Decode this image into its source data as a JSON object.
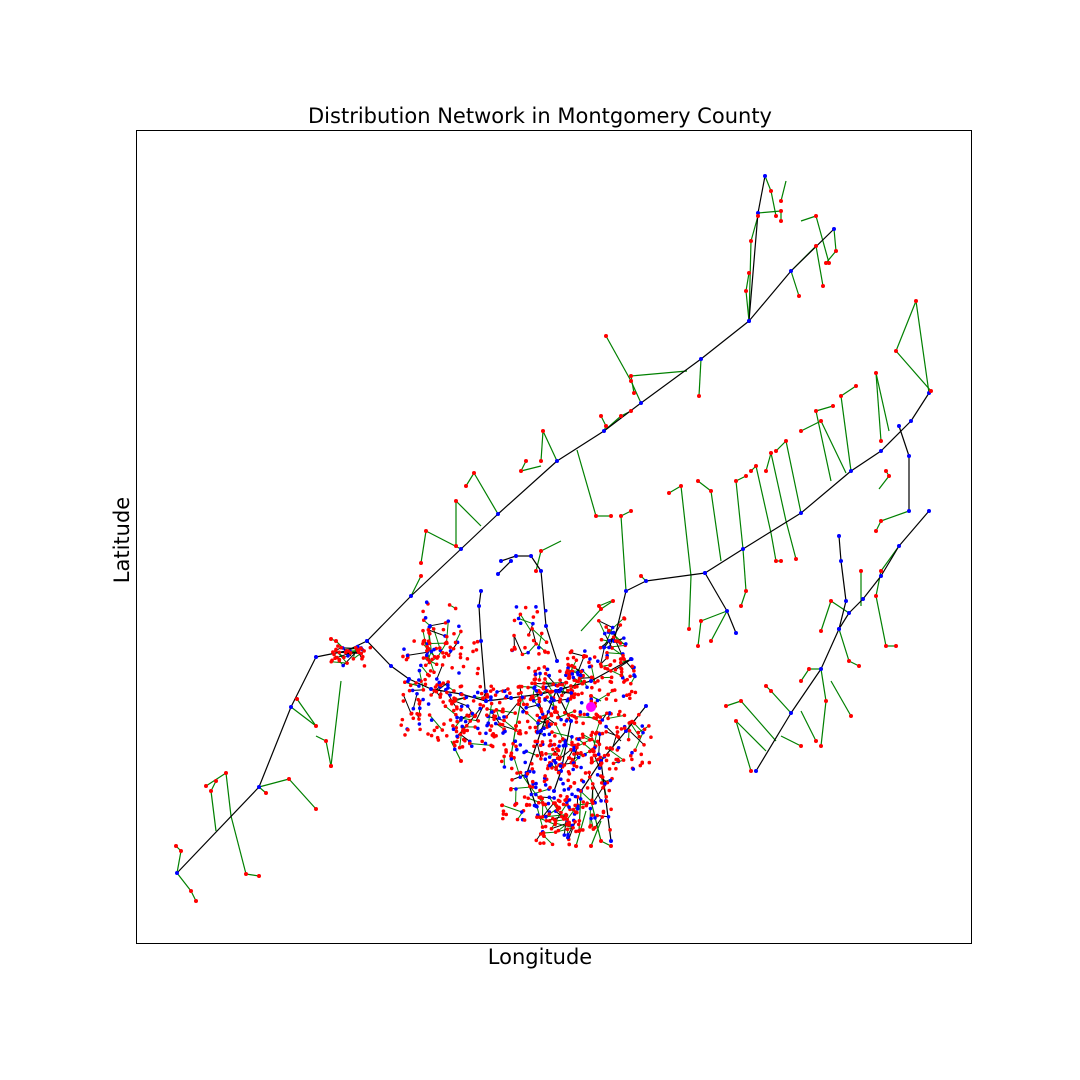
{
  "figure": {
    "title": "Distribution Network in Montgomery County",
    "xlabel": "Longitude",
    "ylabel": "Latitude"
  },
  "colors": {
    "primary_line": "#000000",
    "secondary_line": "#008000",
    "bus_node": "#0000ff",
    "load_node": "#ff0000",
    "substation": "#ff00ff"
  }
}
